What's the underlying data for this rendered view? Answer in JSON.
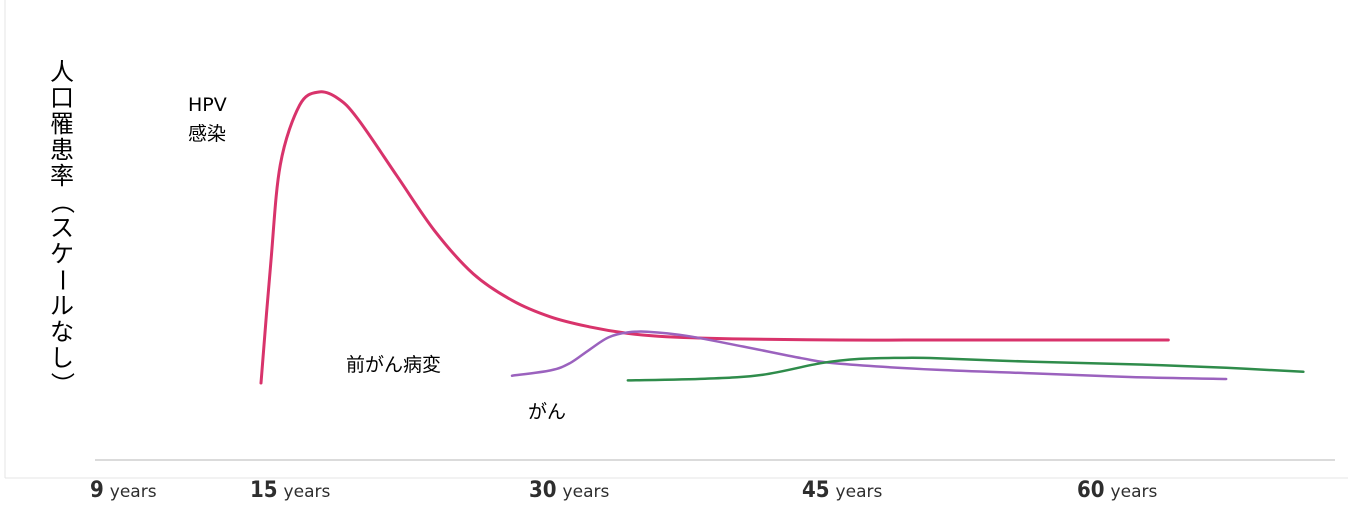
{
  "chart_data": {
    "type": "line",
    "ylabel": "人口罹患率（スケールなし）",
    "xlabel": "",
    "x_ticks": [
      {
        "value": 9,
        "label": "9 years"
      },
      {
        "value": 15,
        "label": "15 years"
      },
      {
        "value": 30,
        "label": "30 years"
      },
      {
        "value": 45,
        "label": "45 years"
      },
      {
        "value": 60,
        "label": "60 years"
      }
    ],
    "xlim": [
      8,
      70
    ],
    "ylim": [
      0,
      100
    ],
    "grid": false,
    "legend": "none",
    "series": [
      {
        "name": "HPV 感染",
        "label_lines": [
          "HPV",
          "感染"
        ],
        "color": "#d8336b",
        "x": [
          15,
          15.5,
          16,
          17,
          18,
          19,
          20,
          22,
          24,
          26,
          28,
          30,
          32,
          34,
          36,
          40,
          45,
          50,
          55,
          60,
          62
        ],
        "y": [
          0,
          36,
          66,
          84,
          88,
          86,
          80,
          63,
          46,
          33,
          25,
          20,
          17,
          15,
          14,
          13.3,
          13,
          13,
          13,
          13,
          13
        ]
      },
      {
        "name": "前がん病変",
        "color": "#9b62be",
        "x": [
          28,
          30,
          31,
          32,
          33,
          34,
          35,
          37,
          40,
          43,
          45,
          50,
          55,
          60,
          65
        ],
        "y": [
          2.2,
          3.8,
          6,
          10,
          13.8,
          15.3,
          15.5,
          14.3,
          11,
          7.5,
          5.8,
          4,
          2.9,
          1.8,
          1.2
        ]
      },
      {
        "name": "がん",
        "color": "#2f8c4b",
        "x": [
          34,
          38,
          41,
          44,
          46,
          48,
          50,
          55,
          60,
          65,
          69
        ],
        "y": [
          0.8,
          1.3,
          2.5,
          6,
          7.3,
          7.6,
          7.5,
          6.4,
          5.7,
          4.6,
          3.4
        ]
      }
    ]
  }
}
